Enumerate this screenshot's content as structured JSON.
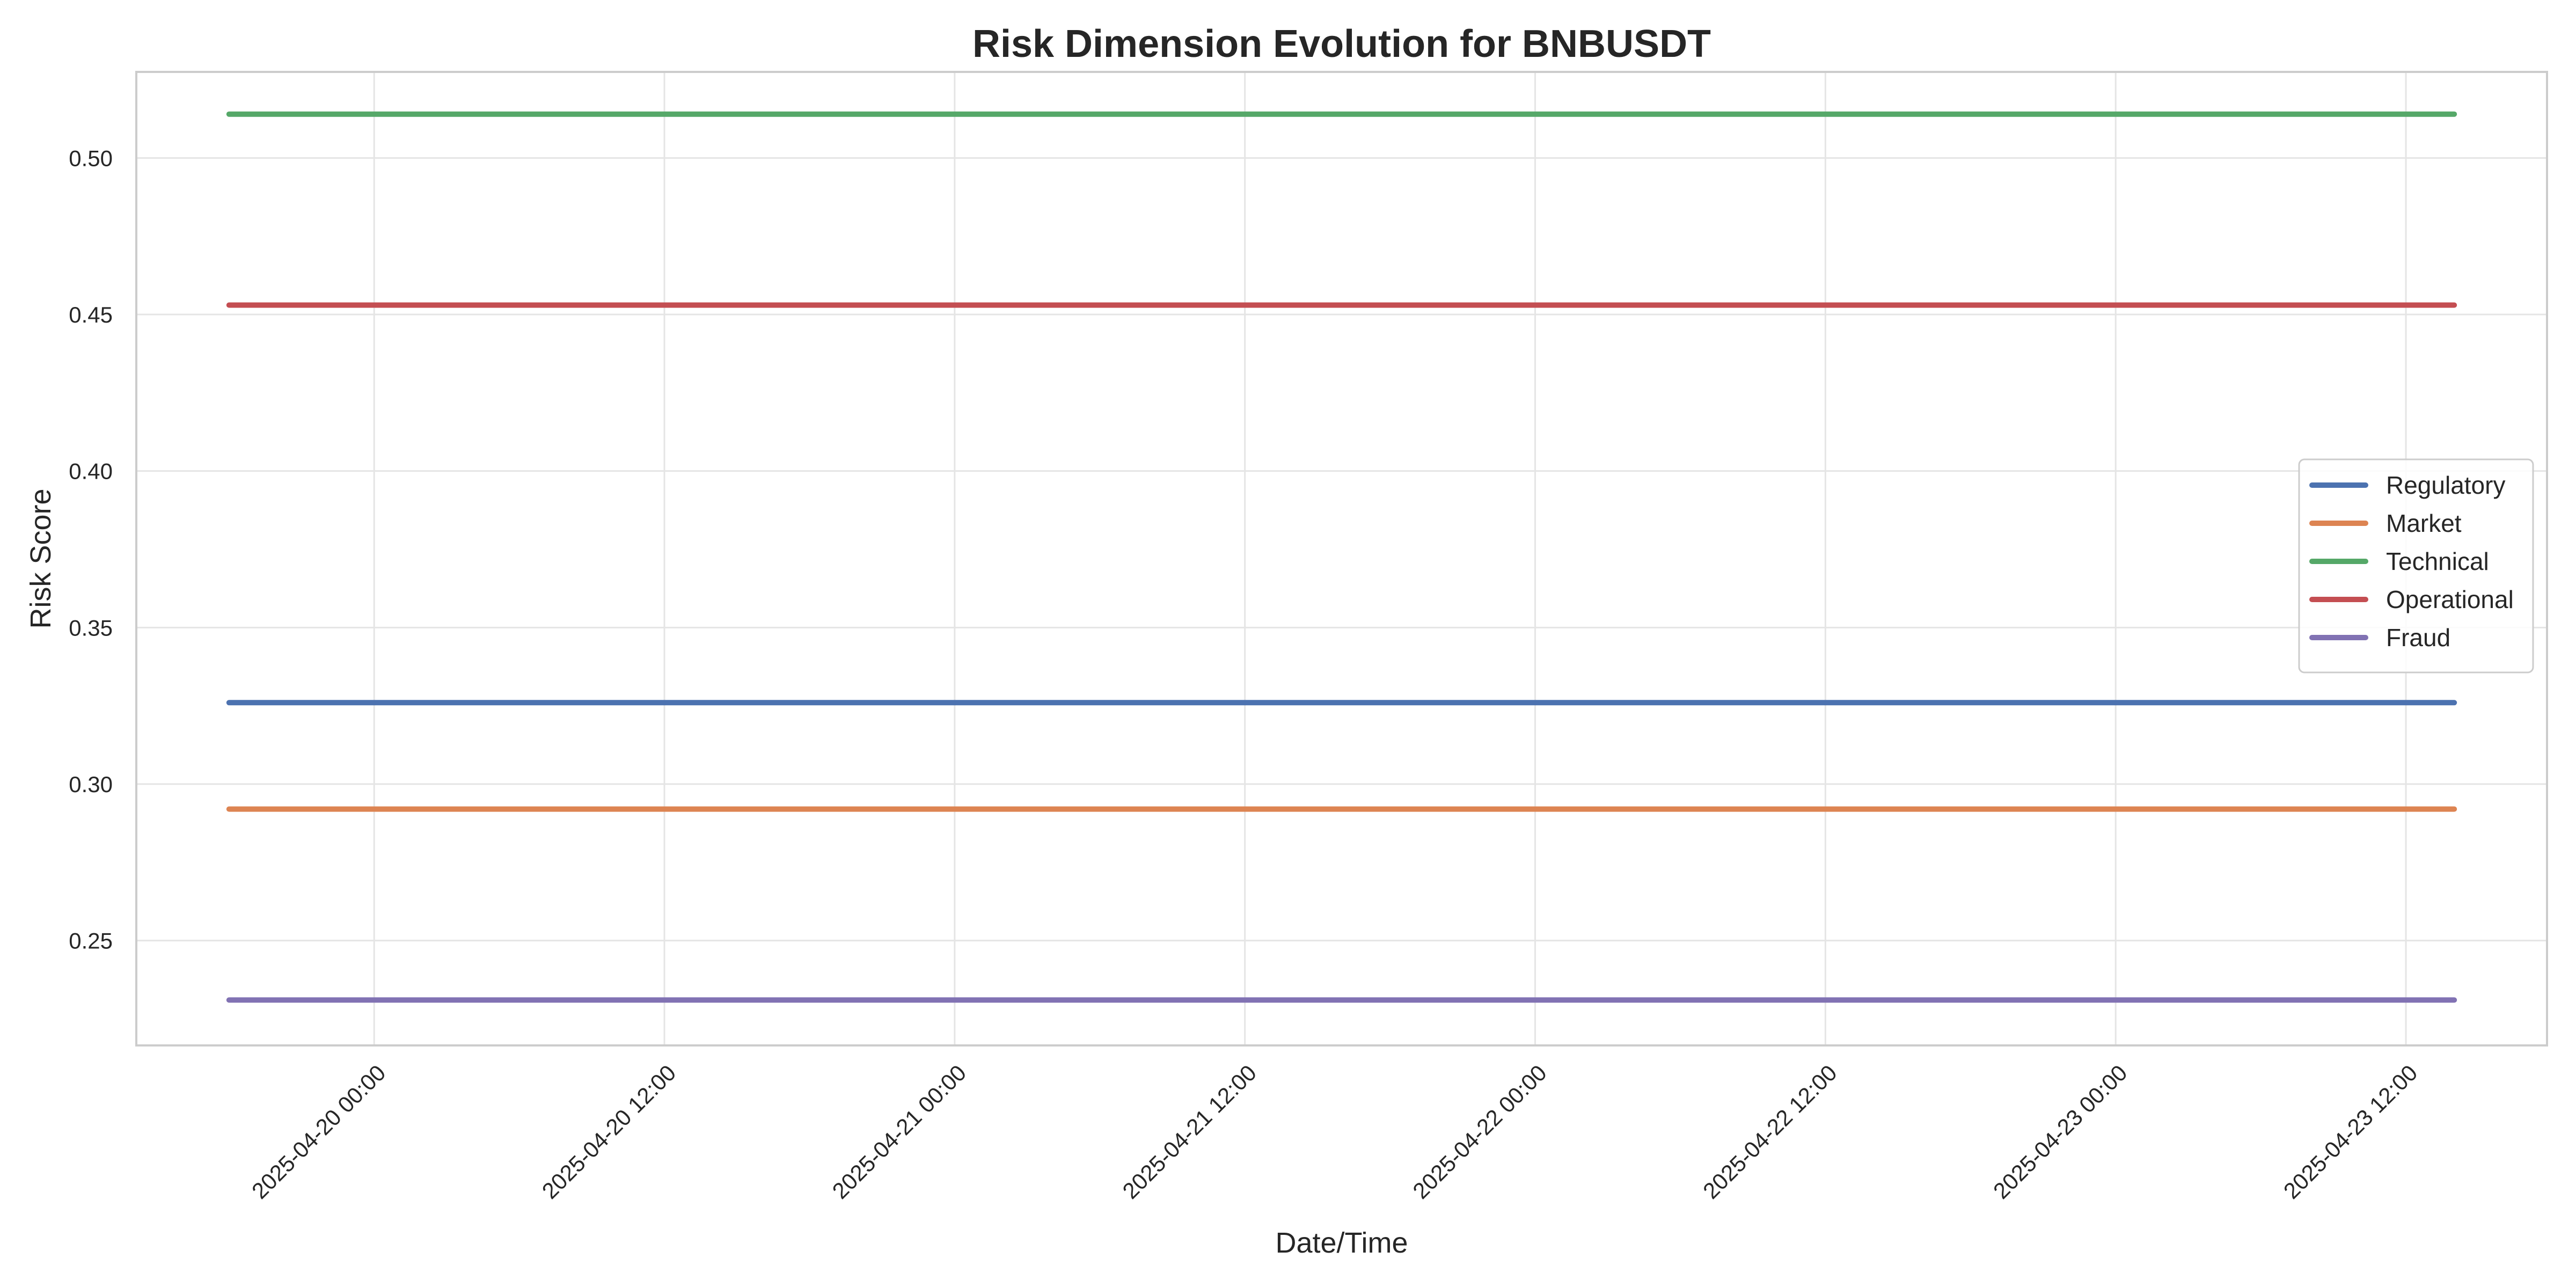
{
  "chart_data": {
    "type": "line",
    "title": "Risk Dimension Evolution for BNBUSDT",
    "xlabel": "Date/Time",
    "ylabel": "Risk Score",
    "x": [
      "2025-04-19 18:00",
      "2025-04-23 14:00"
    ],
    "xlim": [
      "2025-04-19 14:10",
      "2025-04-23 17:50"
    ],
    "ylim": [
      0.2165,
      0.5275
    ],
    "x_ticks": [
      "2025-04-20 00:00",
      "2025-04-20 12:00",
      "2025-04-21 00:00",
      "2025-04-21 12:00",
      "2025-04-22 00:00",
      "2025-04-22 12:00",
      "2025-04-23 00:00",
      "2025-04-23 12:00"
    ],
    "y_ticks": [
      "0.25",
      "0.30",
      "0.35",
      "0.40",
      "0.45",
      "0.50"
    ],
    "grid": true,
    "legend_position": "center-right",
    "series": [
      {
        "name": "Regulatory",
        "color": "#4c72b0",
        "values": [
          0.326,
          0.326
        ]
      },
      {
        "name": "Market",
        "color": "#dd8452",
        "values": [
          0.292,
          0.292
        ]
      },
      {
        "name": "Technical",
        "color": "#55a868",
        "values": [
          0.514,
          0.514
        ]
      },
      {
        "name": "Operational",
        "color": "#c44e52",
        "values": [
          0.453,
          0.453
        ]
      },
      {
        "name": "Fraud",
        "color": "#8172b3",
        "values": [
          0.231,
          0.231
        ]
      }
    ]
  }
}
